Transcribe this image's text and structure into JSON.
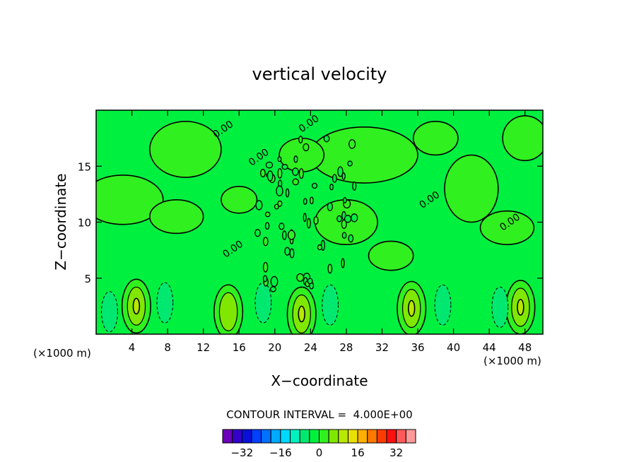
{
  "chart_data": {
    "type": "heatmap",
    "title": "vertical velocity",
    "xlabel": "X−coordinate",
    "ylabel": "Z−coordinate",
    "x_unit_left": "(×1000 m)",
    "x_unit_right": "(×1000 m)",
    "xlim": [
      0,
      50
    ],
    "ylim": [
      0,
      20
    ],
    "x_ticks": [
      4,
      8,
      12,
      16,
      20,
      24,
      28,
      32,
      36,
      40,
      44,
      48
    ],
    "x_tick_labels": [
      "4",
      "8",
      "12",
      "16",
      "20",
      "24",
      "28",
      "32",
      "36",
      "40",
      "44",
      "48"
    ],
    "y_ticks": [
      5,
      10,
      15
    ],
    "y_tick_labels": [
      "5",
      "10",
      "15"
    ],
    "contour_label": "0.00",
    "contour_label_positions": [
      {
        "x": 13.4,
        "y": 17.5
      },
      {
        "x": 23.0,
        "y": 18.0
      },
      {
        "x": 17.4,
        "y": 15.0
      },
      {
        "x": 36.5,
        "y": 11.2
      },
      {
        "x": 45.5,
        "y": 9.2
      },
      {
        "x": 14.5,
        "y": 6.8
      }
    ],
    "contour_interval_text": "CONTOUR INTERVAL =  4.000E+00",
    "contour_interval": 4.0,
    "colorbar": {
      "levels": [
        -36,
        -32,
        -28,
        -24,
        -20,
        -16,
        -12,
        -8,
        -4,
        0,
        4,
        8,
        12,
        16,
        20,
        24,
        28,
        32,
        36
      ],
      "tick_values": [
        -32,
        -16,
        0,
        16,
        32
      ],
      "tick_labels": [
        "−32",
        "−16",
        "0",
        "16",
        "32"
      ],
      "colors": [
        "#6a00b8",
        "#3500c8",
        "#0a10d8",
        "#0040ff",
        "#0070ff",
        "#00a8ff",
        "#00d8ff",
        "#00f0c0",
        "#00e870",
        "#00f040",
        "#30f020",
        "#80e800",
        "#b8e800",
        "#e8e000",
        "#ffb000",
        "#ff7800",
        "#ff3c00",
        "#ff1010",
        "#ff5a5a",
        "#ff9a9a"
      ]
    },
    "updraft_cores": [
      {
        "x": 4.5,
        "y": 2.5,
        "peak": 8
      },
      {
        "x": 14.8,
        "y": 2.0,
        "peak": 4
      },
      {
        "x": 23.0,
        "y": 1.8,
        "peak": 12
      },
      {
        "x": 35.3,
        "y": 2.3,
        "peak": 8
      },
      {
        "x": 47.5,
        "y": 2.4,
        "peak": 8
      }
    ],
    "downdraft_cores": [
      {
        "x": 1.5,
        "y": 2.0,
        "trough": -4
      },
      {
        "x": 7.7,
        "y": 2.8,
        "trough": -4
      },
      {
        "x": 18.7,
        "y": 2.8,
        "trough": -4
      },
      {
        "x": 26.2,
        "y": 2.6,
        "trough": -8
      },
      {
        "x": 38.8,
        "y": 2.6,
        "trough": -4
      },
      {
        "x": 45.2,
        "y": 2.4,
        "trough": -4
      }
    ],
    "field_colors": {
      "level_minus8_minus4": "#00e870",
      "level_minus4_0": "#00f040",
      "level_0_4": "#30f020",
      "level_4_8": "#80e800",
      "level_8_12": "#b8e800"
    },
    "grid": false
  }
}
